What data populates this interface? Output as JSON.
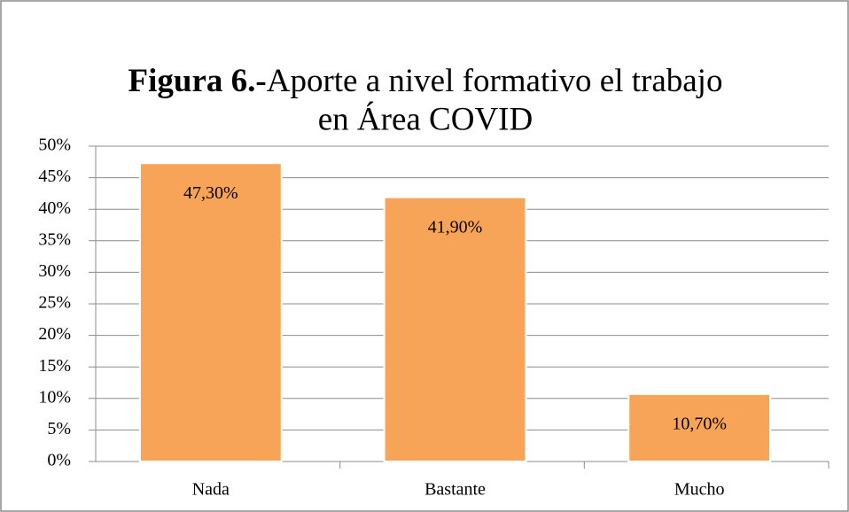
{
  "chart_data": {
    "type": "bar",
    "title": {
      "bold": "Figura 6.-",
      "lines": [
        "Aporte a nivel formativo el trabajo",
        "en Área COVID"
      ]
    },
    "categories": [
      "Nada",
      "Bastante",
      "Mucho"
    ],
    "values": [
      47.3,
      41.9,
      10.7
    ],
    "value_labels": [
      "47,30%",
      "41,90%",
      "10,70%"
    ],
    "color": "#f8a458",
    "ylim": [
      0,
      50
    ],
    "yticks": [
      {
        "value": 0,
        "label": "0%"
      },
      {
        "value": 5,
        "label": "5%"
      },
      {
        "value": 10,
        "label": "10%"
      },
      {
        "value": 15,
        "label": "15%"
      },
      {
        "value": 20,
        "label": "20%"
      },
      {
        "value": 25,
        "label": "25%"
      },
      {
        "value": 30,
        "label": "30%"
      },
      {
        "value": 35,
        "label": "35%"
      },
      {
        "value": 40,
        "label": "40%"
      },
      {
        "value": 45,
        "label": "45%"
      },
      {
        "value": 50,
        "label": "50%"
      }
    ],
    "grid": true
  }
}
